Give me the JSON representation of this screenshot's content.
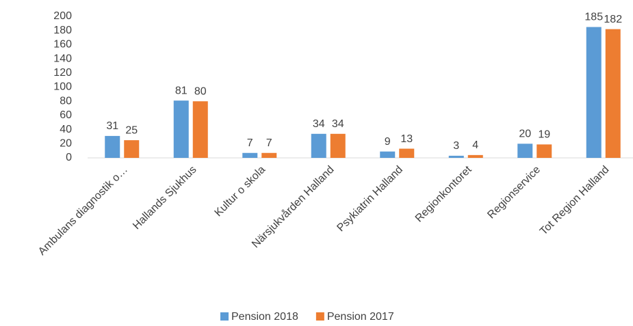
{
  "chart_data": {
    "type": "bar",
    "categories": [
      "Ambulans diagnostik o…",
      "Hallands Sjukhus",
      "Kultur o skola",
      "Närsjukvården Halland",
      "Psykiatrin Halland",
      "Regionkontoret",
      "Regionservice",
      "Tot Region Halland"
    ],
    "series": [
      {
        "name": "Pension 2018",
        "color": "#5b9bd5",
        "values": [
          31,
          81,
          7,
          34,
          9,
          3,
          20,
          185
        ]
      },
      {
        "name": "Pension 2017",
        "color": "#ed7d31",
        "values": [
          25,
          80,
          7,
          34,
          13,
          4,
          19,
          182
        ]
      }
    ],
    "ylim": [
      0,
      200
    ],
    "yticks": [
      0,
      20,
      40,
      60,
      80,
      100,
      120,
      140,
      160,
      180,
      200
    ],
    "legend": "bottom"
  }
}
